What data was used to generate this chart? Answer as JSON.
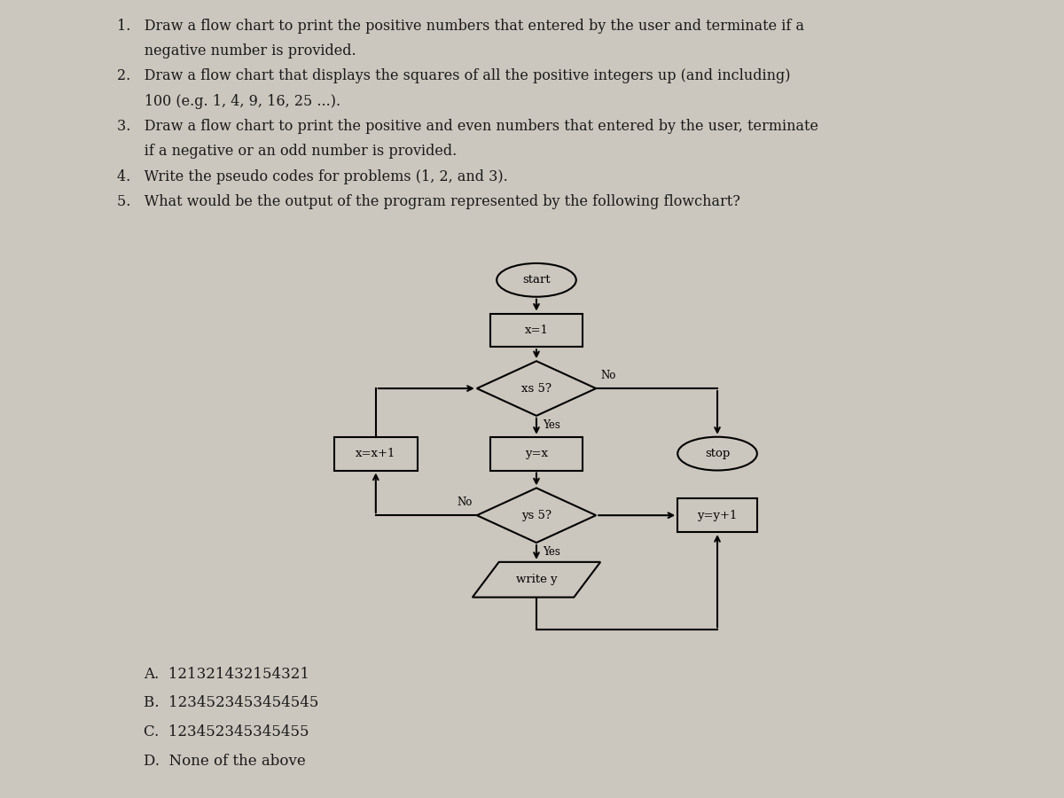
{
  "bg_color": "#cbc7be",
  "text_color": "#1a1a1a",
  "font_size_q": 11.5,
  "font_size_fc": 9.5,
  "font_size_ans": 12,
  "flowchart": {
    "start_label": "start",
    "x1_label": "x=1",
    "diamond1_label": "xs 5?",
    "yes1_label": "Yes",
    "no1_label": "No",
    "yx_label": "y=x",
    "xp1_label": "x=x+1",
    "stop_label": "stop",
    "diamond2_label": "ys 5?",
    "yes2_label": "Yes",
    "no2_label": "No",
    "writey_label": "write y",
    "yp1_label": "y=y+1"
  },
  "q1": "1.   Draw a flow chart to print the positive numbers that entered by the user and terminate if a",
  "q1b": "      negative number is provided.",
  "q2": "2.   Draw a flow chart that displays the squares of all the positive integers up (and including)",
  "q2b": "      100 (e.g. 1, 4, 9, 16, 25 ...).",
  "q3": "3.   Draw a flow chart to print the positive and even numbers that entered by the user, terminate",
  "q3b": "      if a negative or an odd number is provided.",
  "q4": "4.   Write the pseudo codes for problems (1, 2, and 3).",
  "q5": "5.   What would be the output of the program represented by the following flowchart?",
  "a1": "A.  121321432154321",
  "a2": "B.  1234523453454545",
  "a3": "C.  123452345345455",
  "a4": "D.  None of the above"
}
